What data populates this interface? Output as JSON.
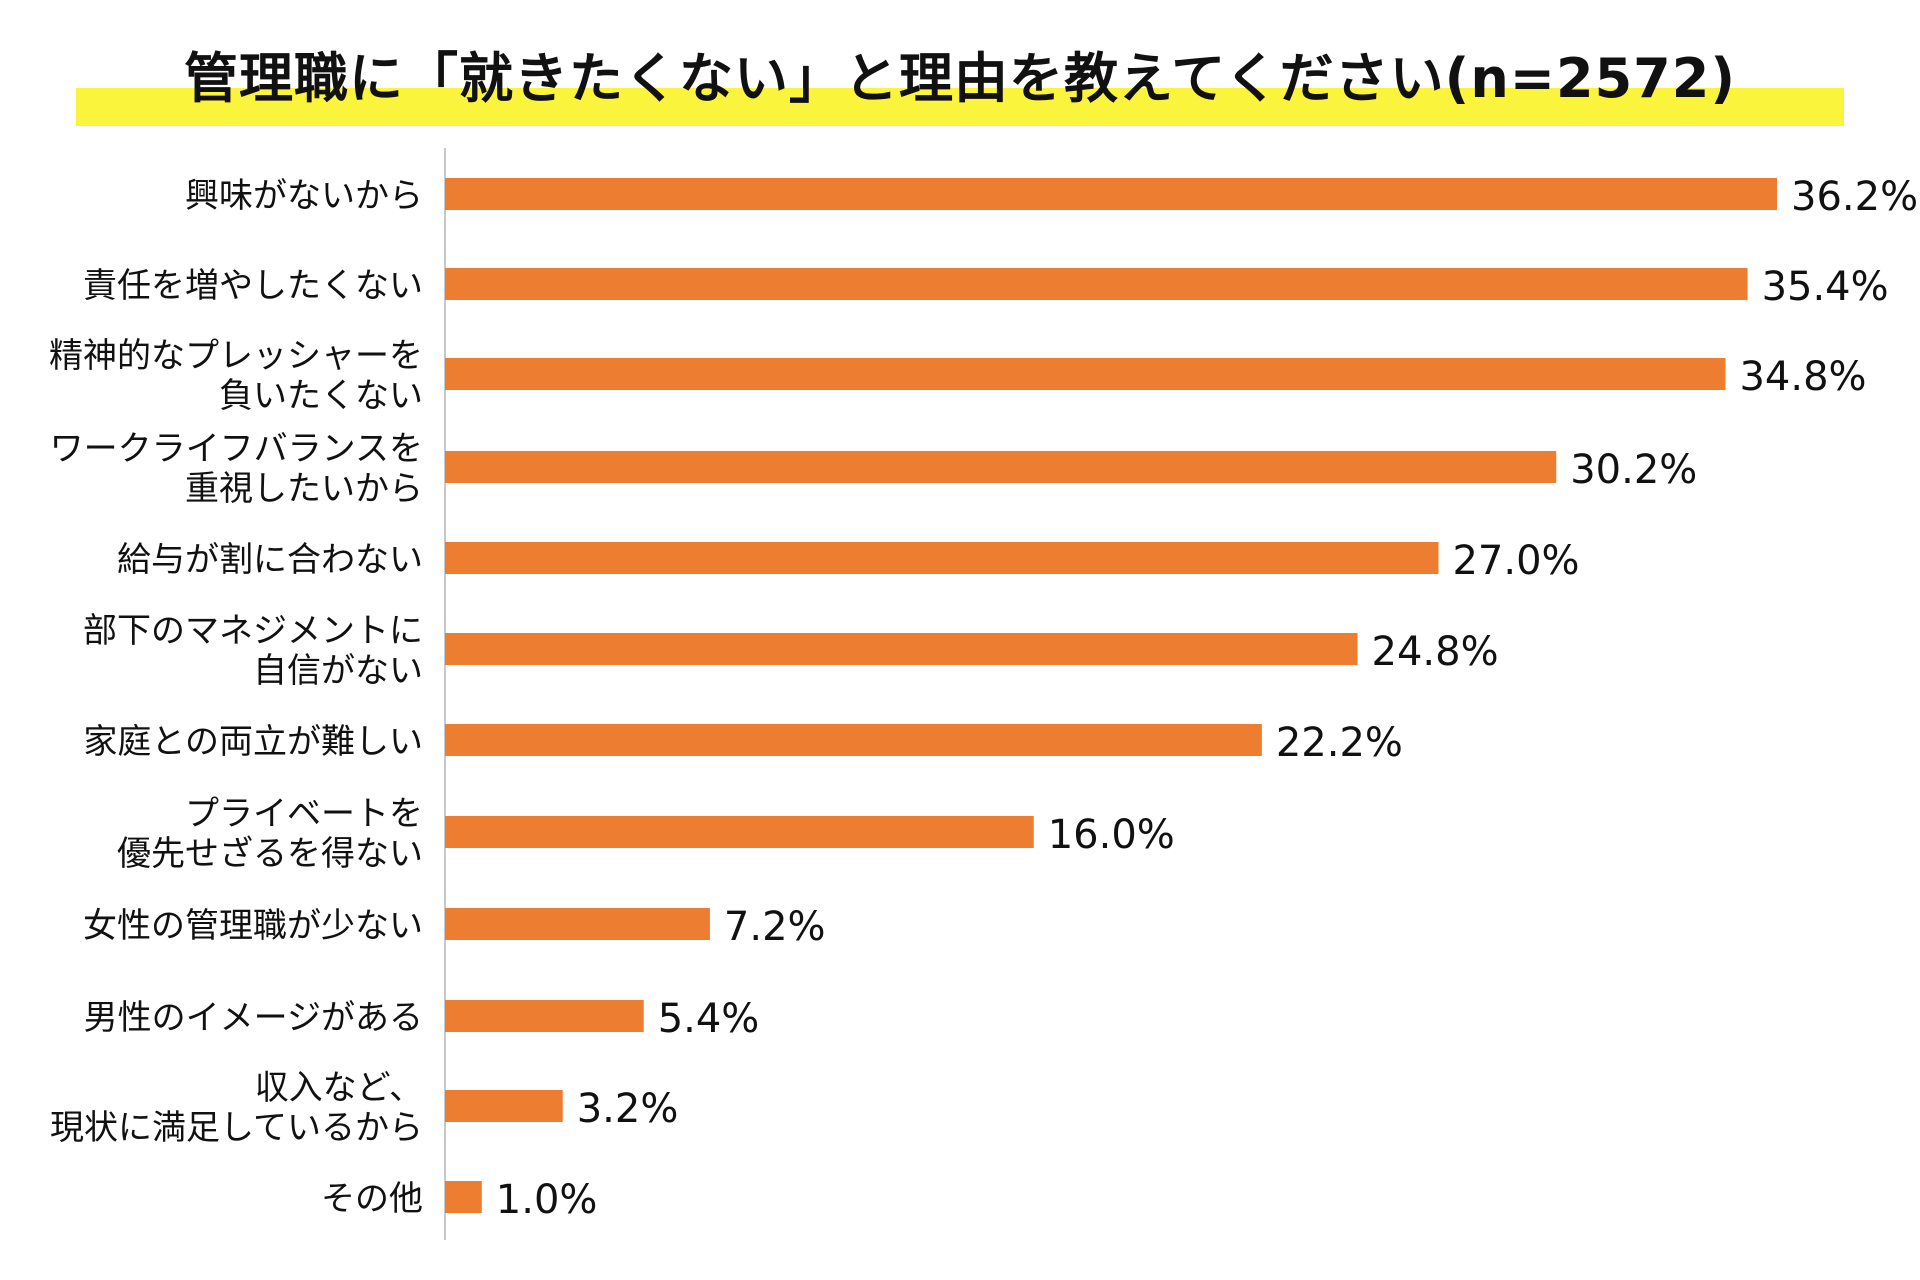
{
  "colors": {
    "bar": "#ed7d31",
    "highlight": "#fbf43c",
    "axis": "#c8c8c8",
    "text": "#111111"
  },
  "chart_data": {
    "type": "bar",
    "orientation": "horizontal",
    "title": "管理職に「就きたくない」と理由を教えてください(n=2572)",
    "xlabel": "",
    "ylabel": "",
    "xlim": [
      0,
      36.2
    ],
    "grid": false,
    "legend": "none",
    "categories": [
      [
        "興味がないから"
      ],
      [
        "責任を増やしたくない"
      ],
      [
        "精神的なプレッシャーを",
        "負いたくない"
      ],
      [
        "ワークライフバランスを",
        "重視したいから"
      ],
      [
        "給与が割に合わない"
      ],
      [
        "部下のマネジメントに",
        "自信がない"
      ],
      [
        "家庭との両立が難しい"
      ],
      [
        "プライベートを",
        "優先せざるを得ない"
      ],
      [
        "女性の管理職が少ない"
      ],
      [
        "男性のイメージがある"
      ],
      [
        "収入など、",
        "現状に満足しているから"
      ],
      [
        "その他"
      ]
    ],
    "values": [
      36.2,
      35.4,
      34.8,
      30.2,
      27.0,
      24.8,
      22.2,
      16.0,
      7.2,
      5.4,
      3.2,
      1.0
    ],
    "value_labels": [
      "36.2%",
      "35.4%",
      "34.8%",
      "30.2%",
      "27.0%",
      "24.8%",
      "22.2%",
      "16.0%",
      "7.2%",
      "5.4%",
      "3.2%",
      "1.0%"
    ]
  }
}
